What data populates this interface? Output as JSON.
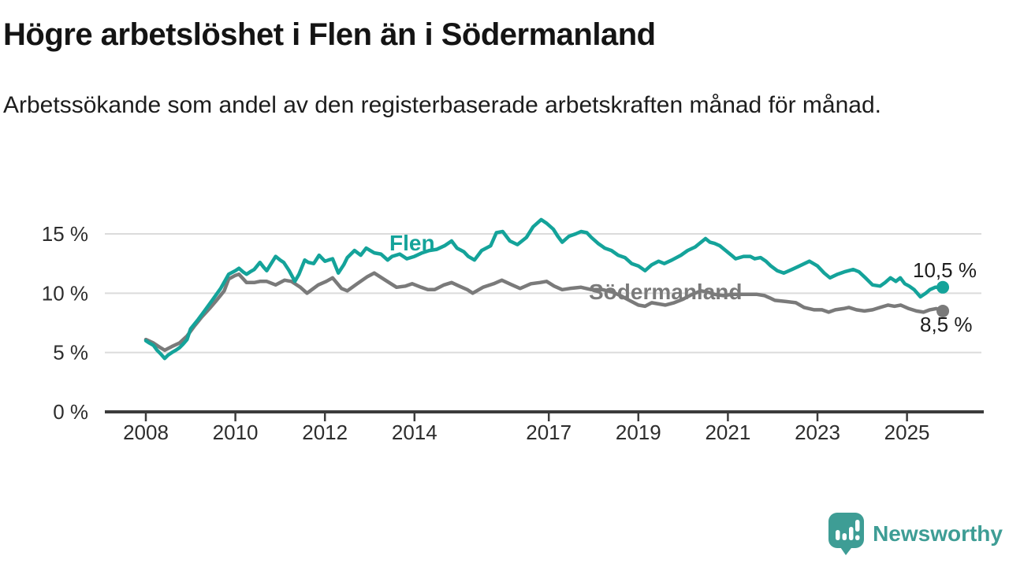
{
  "header": {
    "title": "Högre arbetslöshet i Flen än i Södermanland",
    "subtitle": "Arbetssökande som andel av den registerbaserade arbetskraften månad för månad."
  },
  "footer": {
    "brand": "Newsworthy"
  },
  "colors": {
    "flen": "#14a39a",
    "sodermanland": "#7a7a7a",
    "annotation_text": "#1d1d1d",
    "grid": "#dbdbdb",
    "axis": "#3b3b3b",
    "tick_text": "#2d2d2d",
    "logo": "#3e9d95"
  },
  "chart_data": {
    "type": "line",
    "title": "Högre arbetslöshet i Flen än i Södermanland",
    "xlabel": "",
    "ylabel": "Arbetssökande som andel av den registerbaserade arbetskraften",
    "grid": true,
    "xlim": [
      2007.6,
      2026.2
    ],
    "ylim": [
      0,
      16.5
    ],
    "x_ticks": [
      {
        "value": 2008,
        "label": "2008"
      },
      {
        "value": 2010,
        "label": "2010"
      },
      {
        "value": 2012,
        "label": "2012"
      },
      {
        "value": 2014,
        "label": "2014"
      },
      {
        "value": 2017,
        "label": "2017"
      },
      {
        "value": 2019,
        "label": "2019"
      },
      {
        "value": 2021,
        "label": "2021"
      },
      {
        "value": 2023,
        "label": "2023"
      },
      {
        "value": 2025,
        "label": "2025"
      }
    ],
    "y_ticks": [
      {
        "value": 0,
        "label": "0 %"
      },
      {
        "value": 5,
        "label": "5 %"
      },
      {
        "value": 10,
        "label": "10 %"
      },
      {
        "value": 15,
        "label": "15 %"
      }
    ],
    "series": [
      {
        "name": "Flen",
        "inline_label": "Flen",
        "end_label": "10,5 %",
        "end_value": 10.5,
        "color": "#14a39a",
        "points": [
          [
            2008.0,
            6.0
          ],
          [
            2008.08,
            5.8
          ],
          [
            2008.17,
            5.6
          ],
          [
            2008.25,
            5.2
          ],
          [
            2008.33,
            4.9
          ],
          [
            2008.42,
            4.5
          ],
          [
            2008.5,
            4.8
          ],
          [
            2008.58,
            5.0
          ],
          [
            2008.67,
            5.2
          ],
          [
            2008.75,
            5.4
          ],
          [
            2008.83,
            5.7
          ],
          [
            2008.92,
            6.1
          ],
          [
            2009.0,
            7.0
          ],
          [
            2009.17,
            7.8
          ],
          [
            2009.33,
            8.6
          ],
          [
            2009.5,
            9.5
          ],
          [
            2009.67,
            10.4
          ],
          [
            2009.85,
            11.6
          ],
          [
            2010.0,
            11.9
          ],
          [
            2010.08,
            12.1
          ],
          [
            2010.17,
            11.8
          ],
          [
            2010.25,
            11.6
          ],
          [
            2010.33,
            11.8
          ],
          [
            2010.42,
            12.0
          ],
          [
            2010.55,
            12.6
          ],
          [
            2010.63,
            12.2
          ],
          [
            2010.7,
            11.9
          ],
          [
            2010.8,
            12.5
          ],
          [
            2010.9,
            13.1
          ],
          [
            2011.0,
            12.8
          ],
          [
            2011.08,
            12.6
          ],
          [
            2011.2,
            11.9
          ],
          [
            2011.33,
            11.0
          ],
          [
            2011.42,
            11.6
          ],
          [
            2011.55,
            12.8
          ],
          [
            2011.63,
            12.6
          ],
          [
            2011.75,
            12.5
          ],
          [
            2011.87,
            13.2
          ],
          [
            2012.0,
            12.7
          ],
          [
            2012.08,
            12.8
          ],
          [
            2012.17,
            12.9
          ],
          [
            2012.3,
            11.7
          ],
          [
            2012.42,
            12.4
          ],
          [
            2012.5,
            13.0
          ],
          [
            2012.66,
            13.6
          ],
          [
            2012.8,
            13.2
          ],
          [
            2012.92,
            13.8
          ],
          [
            2013.1,
            13.4
          ],
          [
            2013.25,
            13.3
          ],
          [
            2013.4,
            12.8
          ],
          [
            2013.5,
            13.1
          ],
          [
            2013.67,
            13.3
          ],
          [
            2013.83,
            12.9
          ],
          [
            2014.0,
            13.1
          ],
          [
            2014.17,
            13.4
          ],
          [
            2014.33,
            13.6
          ],
          [
            2014.5,
            13.7
          ],
          [
            2014.67,
            14.0
          ],
          [
            2014.83,
            14.4
          ],
          [
            2014.95,
            13.8
          ],
          [
            2015.1,
            13.5
          ],
          [
            2015.2,
            13.1
          ],
          [
            2015.34,
            12.8
          ],
          [
            2015.5,
            13.6
          ],
          [
            2015.7,
            14.0
          ],
          [
            2015.83,
            15.1
          ],
          [
            2015.97,
            15.2
          ],
          [
            2016.13,
            14.4
          ],
          [
            2016.3,
            14.1
          ],
          [
            2016.5,
            14.7
          ],
          [
            2016.65,
            15.6
          ],
          [
            2016.83,
            16.2
          ],
          [
            2016.95,
            15.9
          ],
          [
            2017.1,
            15.4
          ],
          [
            2017.2,
            14.8
          ],
          [
            2017.3,
            14.3
          ],
          [
            2017.45,
            14.8
          ],
          [
            2017.6,
            15.0
          ],
          [
            2017.72,
            15.2
          ],
          [
            2017.85,
            15.1
          ],
          [
            2017.95,
            14.7
          ],
          [
            2018.1,
            14.2
          ],
          [
            2018.25,
            13.8
          ],
          [
            2018.4,
            13.6
          ],
          [
            2018.55,
            13.2
          ],
          [
            2018.7,
            13.0
          ],
          [
            2018.85,
            12.5
          ],
          [
            2019.0,
            12.3
          ],
          [
            2019.15,
            11.9
          ],
          [
            2019.3,
            12.4
          ],
          [
            2019.45,
            12.7
          ],
          [
            2019.58,
            12.5
          ],
          [
            2019.75,
            12.8
          ],
          [
            2019.95,
            13.2
          ],
          [
            2020.1,
            13.6
          ],
          [
            2020.27,
            13.9
          ],
          [
            2020.4,
            14.3
          ],
          [
            2020.5,
            14.6
          ],
          [
            2020.6,
            14.3
          ],
          [
            2020.7,
            14.2
          ],
          [
            2020.82,
            14.0
          ],
          [
            2020.95,
            13.6
          ],
          [
            2021.08,
            13.2
          ],
          [
            2021.17,
            12.9
          ],
          [
            2021.35,
            13.1
          ],
          [
            2021.5,
            13.1
          ],
          [
            2021.6,
            12.9
          ],
          [
            2021.73,
            13.0
          ],
          [
            2021.85,
            12.7
          ],
          [
            2021.96,
            12.3
          ],
          [
            2022.1,
            11.9
          ],
          [
            2022.25,
            11.7
          ],
          [
            2022.43,
            12.0
          ],
          [
            2022.6,
            12.3
          ],
          [
            2022.82,
            12.7
          ],
          [
            2023.0,
            12.3
          ],
          [
            2023.15,
            11.7
          ],
          [
            2023.28,
            11.3
          ],
          [
            2023.45,
            11.6
          ],
          [
            2023.6,
            11.8
          ],
          [
            2023.8,
            12.0
          ],
          [
            2023.93,
            11.8
          ],
          [
            2024.07,
            11.3
          ],
          [
            2024.23,
            10.7
          ],
          [
            2024.4,
            10.6
          ],
          [
            2024.51,
            10.9
          ],
          [
            2024.63,
            11.3
          ],
          [
            2024.75,
            11.0
          ],
          [
            2024.85,
            11.3
          ],
          [
            2024.95,
            10.8
          ],
          [
            2025.05,
            10.6
          ],
          [
            2025.16,
            10.3
          ],
          [
            2025.3,
            9.7
          ],
          [
            2025.42,
            10.0
          ],
          [
            2025.51,
            10.3
          ],
          [
            2025.63,
            10.5
          ],
          [
            2025.8,
            10.5
          ]
        ]
      },
      {
        "name": "Södermanland",
        "inline_label": "Södermanland",
        "end_label": "8,5 %",
        "end_value": 8.5,
        "color": "#7a7a7a",
        "points": [
          [
            2008.0,
            6.1
          ],
          [
            2008.17,
            5.8
          ],
          [
            2008.33,
            5.4
          ],
          [
            2008.42,
            5.2
          ],
          [
            2008.58,
            5.5
          ],
          [
            2008.75,
            5.8
          ],
          [
            2008.92,
            6.4
          ],
          [
            2009.08,
            7.2
          ],
          [
            2009.25,
            8.0
          ],
          [
            2009.42,
            8.7
          ],
          [
            2009.58,
            9.4
          ],
          [
            2009.75,
            10.2
          ],
          [
            2009.85,
            11.2
          ],
          [
            2010.0,
            11.5
          ],
          [
            2010.08,
            11.6
          ],
          [
            2010.25,
            10.9
          ],
          [
            2010.42,
            10.9
          ],
          [
            2010.55,
            11.0
          ],
          [
            2010.7,
            11.0
          ],
          [
            2010.9,
            10.7
          ],
          [
            2011.1,
            11.1
          ],
          [
            2011.25,
            11.0
          ],
          [
            2011.45,
            10.5
          ],
          [
            2011.6,
            10.0
          ],
          [
            2011.85,
            10.7
          ],
          [
            2012.03,
            11.0
          ],
          [
            2012.17,
            11.3
          ],
          [
            2012.37,
            10.4
          ],
          [
            2012.5,
            10.2
          ],
          [
            2012.72,
            10.8
          ],
          [
            2012.95,
            11.4
          ],
          [
            2013.1,
            11.7
          ],
          [
            2013.35,
            11.1
          ],
          [
            2013.6,
            10.5
          ],
          [
            2013.8,
            10.6
          ],
          [
            2013.95,
            10.8
          ],
          [
            2014.15,
            10.5
          ],
          [
            2014.3,
            10.3
          ],
          [
            2014.45,
            10.3
          ],
          [
            2014.66,
            10.7
          ],
          [
            2014.83,
            10.9
          ],
          [
            2015.0,
            10.6
          ],
          [
            2015.18,
            10.3
          ],
          [
            2015.3,
            10.0
          ],
          [
            2015.53,
            10.5
          ],
          [
            2015.77,
            10.8
          ],
          [
            2015.95,
            11.1
          ],
          [
            2016.18,
            10.7
          ],
          [
            2016.36,
            10.4
          ],
          [
            2016.6,
            10.8
          ],
          [
            2016.8,
            10.9
          ],
          [
            2016.95,
            11.0
          ],
          [
            2017.12,
            10.6
          ],
          [
            2017.3,
            10.3
          ],
          [
            2017.47,
            10.4
          ],
          [
            2017.72,
            10.5
          ],
          [
            2017.95,
            10.3
          ],
          [
            2018.2,
            10.3
          ],
          [
            2018.42,
            10.1
          ],
          [
            2018.6,
            9.8
          ],
          [
            2018.8,
            9.4
          ],
          [
            2019.0,
            9.0
          ],
          [
            2019.15,
            8.9
          ],
          [
            2019.3,
            9.2
          ],
          [
            2019.45,
            9.1
          ],
          [
            2019.6,
            9.0
          ],
          [
            2019.8,
            9.2
          ],
          [
            2020.0,
            9.5
          ],
          [
            2020.2,
            9.9
          ],
          [
            2020.4,
            10.2
          ],
          [
            2020.55,
            10.1
          ],
          [
            2020.7,
            9.9
          ],
          [
            2020.9,
            9.8
          ],
          [
            2021.1,
            9.9
          ],
          [
            2021.3,
            9.9
          ],
          [
            2021.5,
            9.9
          ],
          [
            2021.65,
            9.9
          ],
          [
            2021.82,
            9.8
          ],
          [
            2021.94,
            9.6
          ],
          [
            2022.05,
            9.4
          ],
          [
            2022.3,
            9.3
          ],
          [
            2022.52,
            9.2
          ],
          [
            2022.7,
            8.8
          ],
          [
            2022.93,
            8.6
          ],
          [
            2023.1,
            8.6
          ],
          [
            2023.25,
            8.4
          ],
          [
            2023.4,
            8.6
          ],
          [
            2023.58,
            8.7
          ],
          [
            2023.7,
            8.8
          ],
          [
            2023.87,
            8.6
          ],
          [
            2024.05,
            8.5
          ],
          [
            2024.23,
            8.6
          ],
          [
            2024.4,
            8.8
          ],
          [
            2024.58,
            9.0
          ],
          [
            2024.72,
            8.9
          ],
          [
            2024.86,
            9.0
          ],
          [
            2025.04,
            8.7
          ],
          [
            2025.21,
            8.5
          ],
          [
            2025.37,
            8.4
          ],
          [
            2025.51,
            8.6
          ],
          [
            2025.65,
            8.7
          ],
          [
            2025.8,
            8.5
          ]
        ]
      }
    ]
  }
}
